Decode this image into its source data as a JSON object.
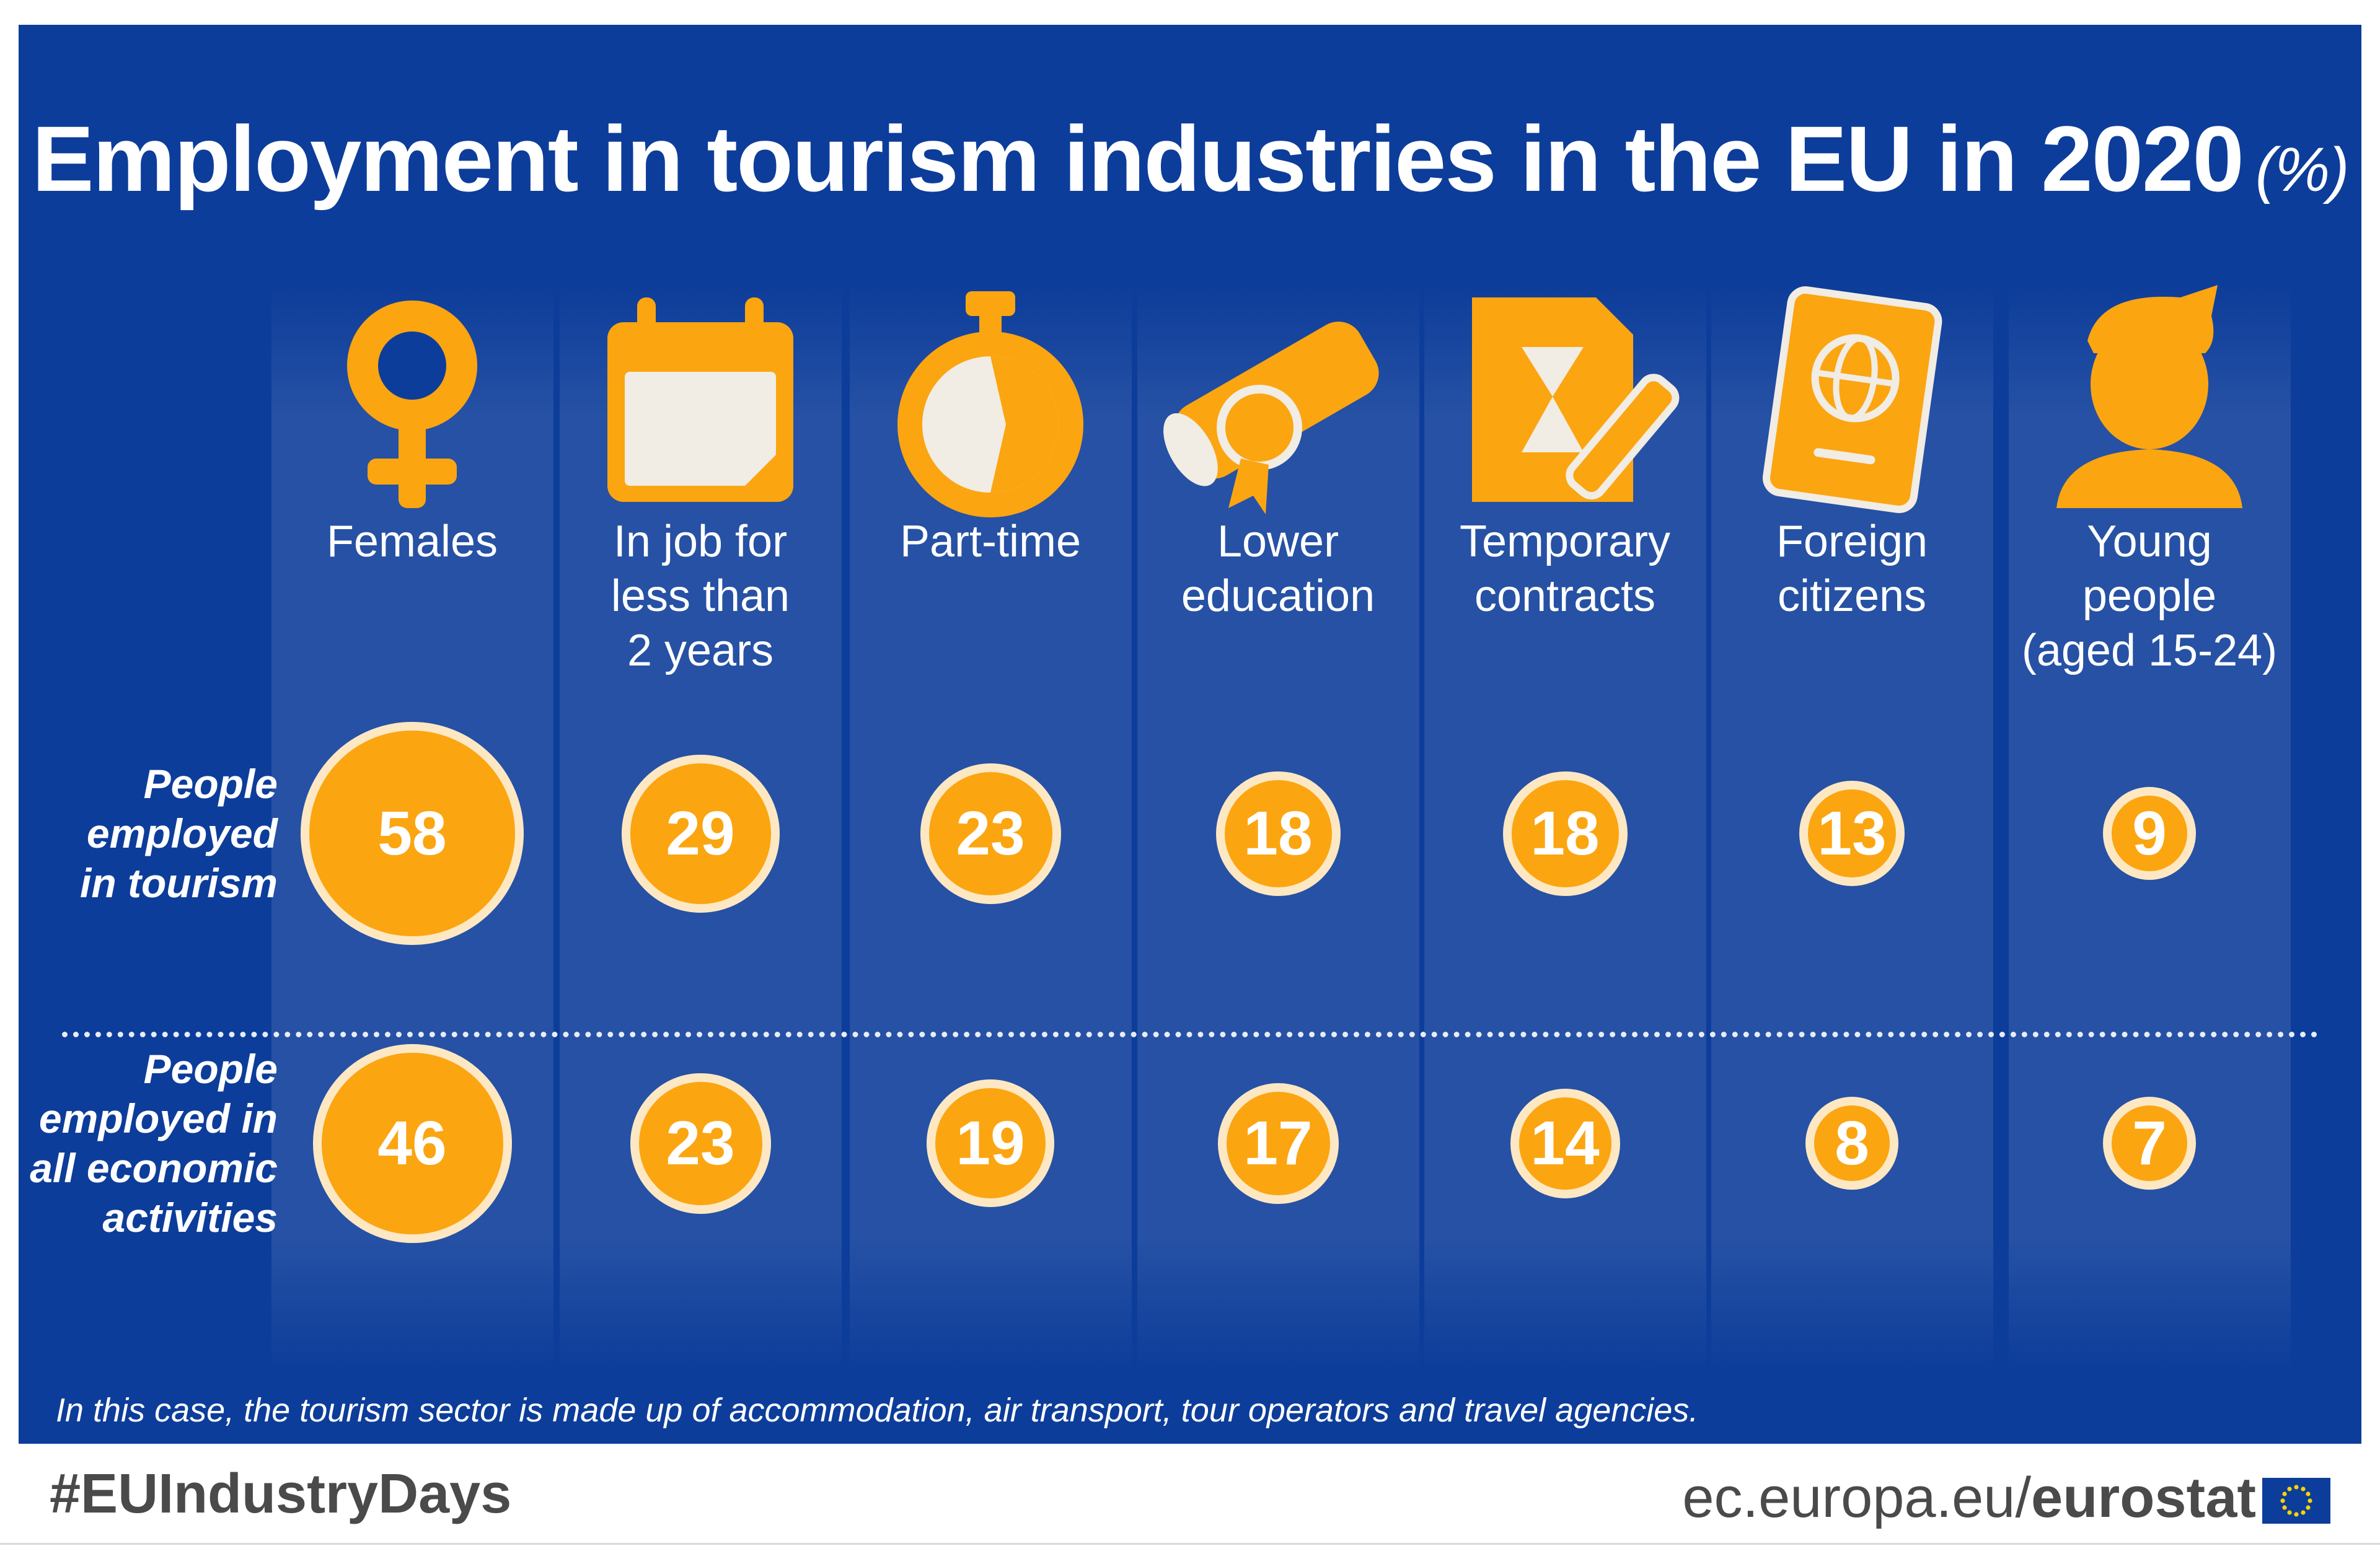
{
  "title": "Employment in tourism industries in the EU in 2020",
  "title_unit": "(%)",
  "categories": [
    {
      "label_lines": [
        "Females"
      ],
      "icon": "female-symbol-icon"
    },
    {
      "label_lines": [
        "In job for",
        "less than",
        "2 years"
      ],
      "icon": "calendar-icon"
    },
    {
      "label_lines": [
        "Part-time"
      ],
      "icon": "stopwatch-icon"
    },
    {
      "label_lines": [
        "Lower",
        "education"
      ],
      "icon": "diploma-icon"
    },
    {
      "label_lines": [
        "Temporary",
        "contracts"
      ],
      "icon": "contract-hourglass-icon"
    },
    {
      "label_lines": [
        "Foreign",
        "citizens"
      ],
      "icon": "passport-icon"
    },
    {
      "label_lines": [
        "Young",
        "people",
        "(aged 15-24)"
      ],
      "icon": "young-person-icon"
    }
  ],
  "rows": [
    {
      "label_lines": [
        "People",
        "employed",
        "in tourism"
      ],
      "values": [
        58,
        29,
        23,
        18,
        18,
        13,
        9
      ]
    },
    {
      "label_lines": [
        "People",
        "employed in",
        "all economic",
        "activities"
      ],
      "values": [
        46,
        23,
        19,
        17,
        14,
        8,
        7
      ]
    }
  ],
  "footnote": "In this case, the tourism sector is made up of accommodation, air transport, tour operators and travel agencies.",
  "footer": {
    "hashtag": "#EUIndustryDays",
    "source_prefix": "ec.europa.eu/",
    "source_brand": "eurostat"
  },
  "colors": {
    "background": "#0d3d9a",
    "bubble": "#fba511",
    "bubble_border": "#fde8c3",
    "icon": "#fba511",
    "icon_light": "#f1ece4"
  }
}
